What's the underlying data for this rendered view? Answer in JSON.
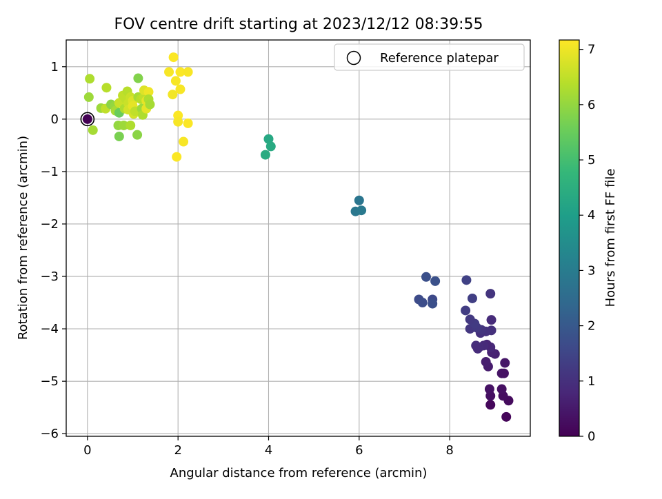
{
  "chart_data": {
    "type": "scatter",
    "title": "FOV centre drift starting at 2023/12/12 08:39:55",
    "xlabel": "Angular distance from reference (arcmin)",
    "ylabel": "Rotation from reference (arcmin)",
    "xlim": [
      -0.47,
      9.78
    ],
    "ylim": [
      -6.05,
      1.51
    ],
    "xticks": [
      0,
      2,
      4,
      6,
      8
    ],
    "yticks": [
      1,
      0,
      -1,
      -2,
      -3,
      -4,
      -5,
      -6
    ],
    "xtick_labels": [
      "0",
      "2",
      "4",
      "6",
      "8"
    ],
    "ytick_labels": [
      "1",
      "0",
      "−1",
      "−2",
      "−3",
      "−4",
      "−5",
      "−6"
    ],
    "grid": true,
    "legend": {
      "position": "top-right",
      "entries": [
        "Reference platepar"
      ]
    },
    "reference_point": {
      "x": 0,
      "y": 0,
      "hours": 0
    },
    "colorbar": {
      "label": "Hours from first FF file",
      "range": [
        0,
        7.17
      ],
      "ticks": [
        0,
        1,
        2,
        3,
        4,
        5,
        6,
        7
      ],
      "colormap": "viridis",
      "stops": [
        "#440154",
        "#482878",
        "#3e4989",
        "#31688e",
        "#26828e",
        "#1f9e89",
        "#35b779",
        "#6ece58",
        "#b5de2b",
        "#fde725"
      ]
    },
    "series": [
      {
        "points": [
          [
            8.9,
            -5.45,
            0.15
          ],
          [
            9.25,
            -5.68,
            0.1
          ],
          [
            9.3,
            -5.37,
            0.2
          ],
          [
            9.18,
            -5.28,
            0.25
          ],
          [
            8.9,
            -5.28,
            0.3
          ],
          [
            8.88,
            -5.15,
            0.35
          ],
          [
            9.15,
            -5.15,
            0.3
          ],
          [
            9.15,
            -4.85,
            0.4
          ],
          [
            9.2,
            -4.85,
            0.35
          ],
          [
            9.22,
            -4.65,
            0.45
          ],
          [
            8.85,
            -4.72,
            0.55
          ],
          [
            8.8,
            -4.63,
            0.6
          ],
          [
            9.0,
            -4.48,
            0.65
          ],
          [
            8.93,
            -4.45,
            0.7
          ],
          [
            8.9,
            -4.35,
            0.8
          ],
          [
            8.82,
            -4.3,
            0.75
          ],
          [
            8.75,
            -4.32,
            0.85
          ],
          [
            8.65,
            -4.35,
            0.9
          ],
          [
            8.58,
            -4.32,
            0.95
          ],
          [
            8.62,
            -4.38,
            0.9
          ],
          [
            8.92,
            -4.03,
            1.0
          ],
          [
            8.8,
            -4.05,
            1.05
          ],
          [
            8.68,
            -4.08,
            1.0
          ],
          [
            8.7,
            -4.02,
            1.1
          ],
          [
            8.45,
            -4.0,
            1.15
          ],
          [
            8.6,
            -3.98,
            1.2
          ],
          [
            8.55,
            -3.9,
            1.25
          ],
          [
            8.45,
            -3.82,
            1.2
          ],
          [
            8.92,
            -3.83,
            0.9
          ],
          [
            8.35,
            -3.65,
            1.3
          ],
          [
            8.5,
            -3.42,
            1.35
          ],
          [
            8.9,
            -3.33,
            1.1
          ],
          [
            8.37,
            -3.07,
            1.4
          ],
          [
            7.48,
            -3.01,
            1.75
          ],
          [
            7.68,
            -3.09,
            1.8
          ],
          [
            7.32,
            -3.44,
            1.65
          ],
          [
            7.4,
            -3.5,
            1.7
          ],
          [
            7.62,
            -3.44,
            1.6
          ],
          [
            7.62,
            -3.52,
            1.75
          ],
          [
            6.0,
            -1.55,
            2.8
          ],
          [
            5.92,
            -1.76,
            2.85
          ],
          [
            6.05,
            -1.74,
            2.9
          ],
          [
            4.0,
            -0.38,
            4.3
          ],
          [
            4.05,
            -0.52,
            4.35
          ],
          [
            3.93,
            -0.68,
            4.4
          ],
          [
            0.0,
            0.0,
            0.0
          ],
          [
            0.05,
            0.77,
            6.3
          ],
          [
            0.03,
            0.42,
            6.1
          ],
          [
            0.12,
            -0.21,
            6.2
          ],
          [
            0.3,
            0.21,
            6.1
          ],
          [
            0.42,
            0.6,
            6.4
          ],
          [
            0.4,
            0.2,
            6.5
          ],
          [
            0.52,
            0.28,
            5.9
          ],
          [
            0.6,
            0.25,
            6.0
          ],
          [
            0.62,
            0.16,
            6.2
          ],
          [
            0.7,
            0.31,
            6.6
          ],
          [
            0.7,
            0.12,
            5.5
          ],
          [
            0.68,
            -0.12,
            6.0
          ],
          [
            0.7,
            -0.33,
            5.7
          ],
          [
            0.78,
            0.45,
            6.5
          ],
          [
            0.8,
            -0.12,
            6.1
          ],
          [
            0.82,
            0.2,
            6.3
          ],
          [
            0.85,
            0.38,
            6.5
          ],
          [
            0.9,
            0.3,
            6.6
          ],
          [
            0.88,
            0.53,
            6.4
          ],
          [
            0.9,
            0.18,
            6.7
          ],
          [
            0.95,
            -0.12,
            6.3
          ],
          [
            0.95,
            0.42,
            6.6
          ],
          [
            1.0,
            0.35,
            6.8
          ],
          [
            1.0,
            0.25,
            6.9
          ],
          [
            1.02,
            0.1,
            6.7
          ],
          [
            1.05,
            0.15,
            6.5
          ],
          [
            1.1,
            -0.3,
            5.9
          ],
          [
            1.12,
            0.78,
            5.8
          ],
          [
            1.12,
            0.42,
            6.2
          ],
          [
            1.18,
            0.38,
            6.4
          ],
          [
            1.2,
            0.2,
            6.1
          ],
          [
            1.22,
            0.08,
            6.3
          ],
          [
            1.25,
            0.42,
            6.5
          ],
          [
            1.25,
            0.55,
            6.8
          ],
          [
            1.3,
            0.35,
            6.9
          ],
          [
            1.35,
            0.52,
            7.0
          ],
          [
            1.3,
            0.2,
            6.9
          ],
          [
            1.35,
            0.38,
            6.3
          ],
          [
            1.38,
            0.28,
            6.2
          ],
          [
            1.8,
            0.9,
            7.1
          ],
          [
            1.9,
            1.18,
            7.15
          ],
          [
            1.88,
            0.47,
            7.05
          ],
          [
            1.95,
            0.73,
            7.1
          ],
          [
            2.05,
            0.9,
            7.15
          ],
          [
            2.05,
            0.57,
            7.1
          ],
          [
            2.22,
            0.9,
            7.12
          ],
          [
            2.0,
            0.07,
            7.15
          ],
          [
            2.0,
            -0.05,
            7.1
          ],
          [
            2.22,
            -0.08,
            7.15
          ],
          [
            2.12,
            -0.43,
            7.1
          ],
          [
            1.97,
            -0.72,
            7.15
          ]
        ]
      }
    ]
  }
}
